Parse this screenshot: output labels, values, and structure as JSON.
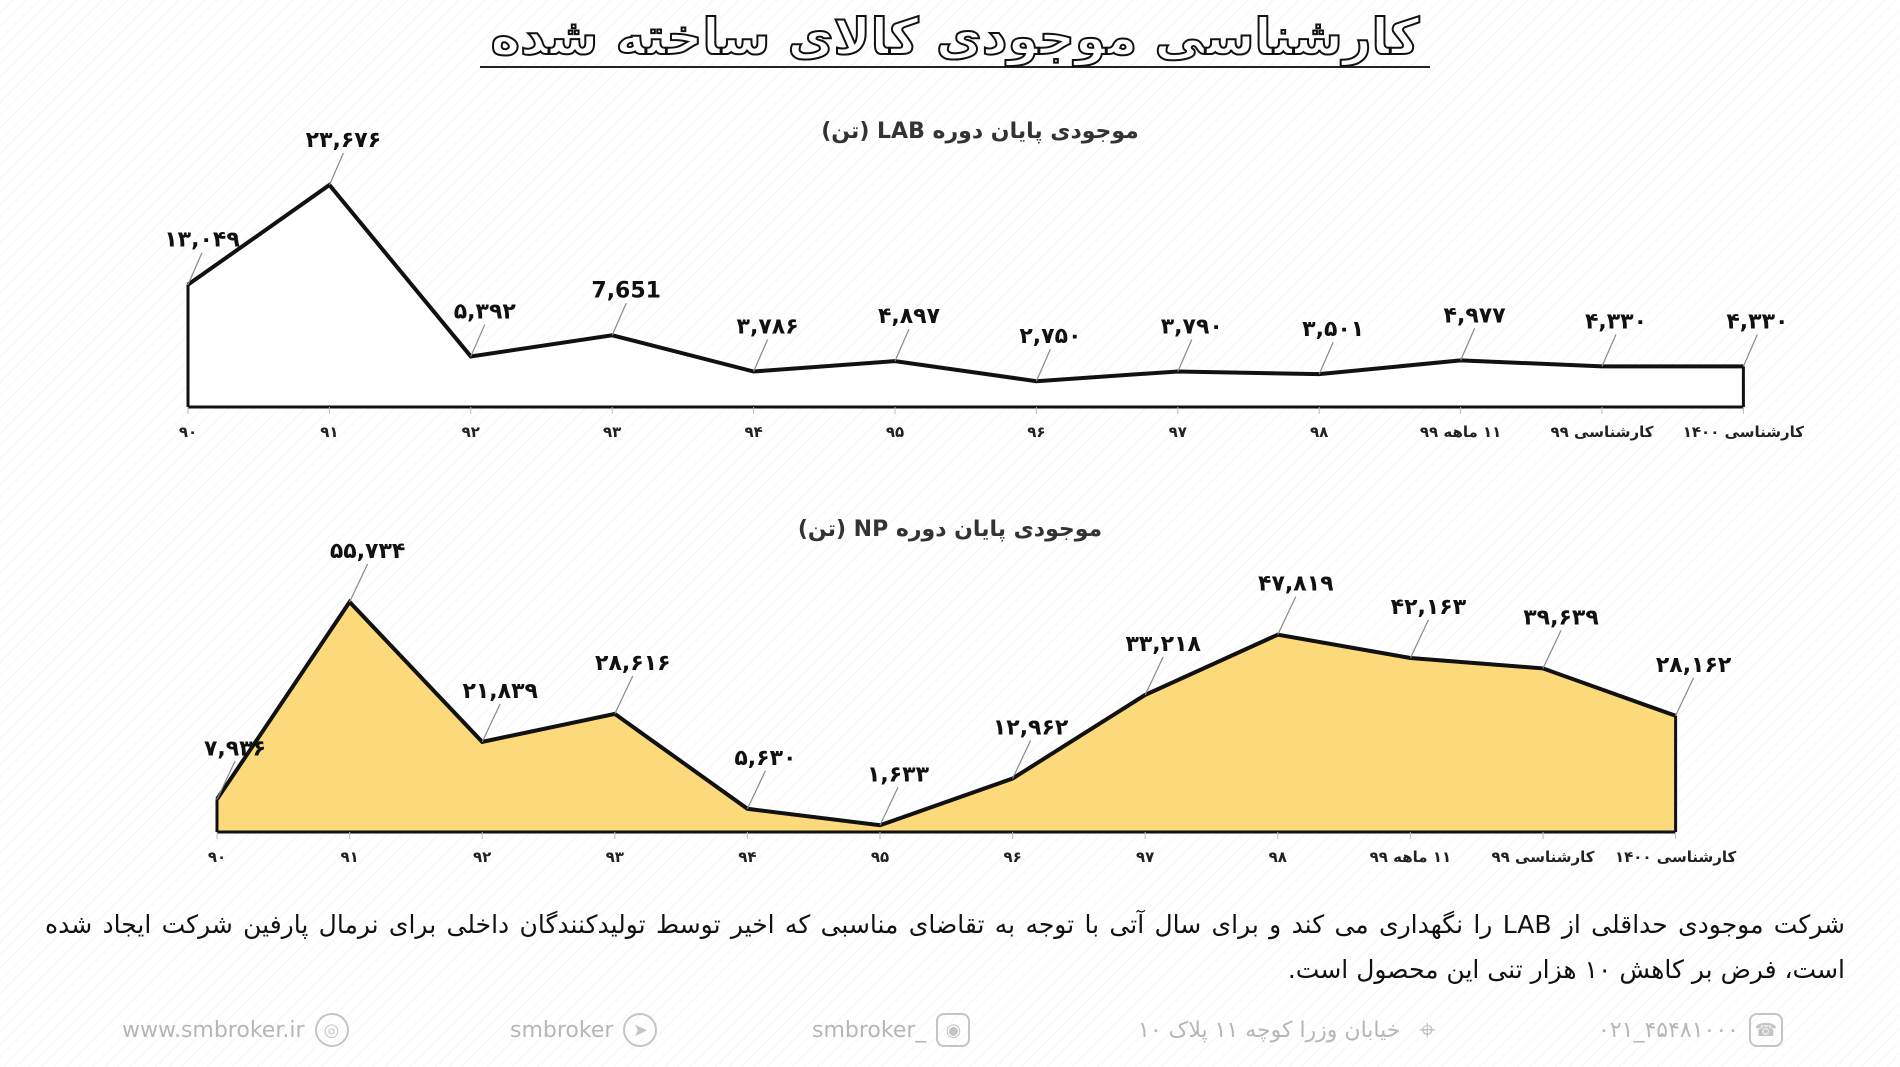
{
  "page": {
    "title": "کارشناسی موجودی کالای ساخته شده"
  },
  "chart_data": [
    {
      "type": "area",
      "title": "موجودی پایان دوره  LAB (تن)",
      "fill": "#ffffff",
      "stroke": "#111111",
      "categories": [
        "۹۰",
        "۹۱",
        "۹۲",
        "۹۳",
        "۹۴",
        "۹۵",
        "۹۶",
        "۹۷",
        "۹۸",
        "۱۱ ماهه ۹۹",
        "کارشناسی ۹۹",
        "کارشناسی ۱۴۰۰"
      ],
      "values": [
        13049,
        23676,
        5392,
        7651,
        3786,
        4897,
        2750,
        3790,
        3501,
        4977,
        4330,
        4330
      ],
      "value_labels": [
        "۱۳,۰۴۹",
        "۲۳,۶۷۶",
        "۵,۳۹۲",
        "7,651",
        "۳,۷۸۶",
        "۴,۸۹۷",
        "۲,۷۵۰",
        "۳,۷۹۰",
        "۳,۵۰۱",
        "۴,۹۷۷",
        "۴,۳۳۰",
        "۴,۳۳۰"
      ]
    },
    {
      "type": "area",
      "title": "موجودی پایان دوره  NP (تن)",
      "fill": "#FCD97A",
      "stroke": "#111111",
      "categories": [
        "۹۰",
        "۹۱",
        "۹۲",
        "۹۳",
        "۹۴",
        "۹۵",
        "۹۶",
        "۹۷",
        "۹۸",
        "۱۱ ماهه ۹۹",
        "کارشناسی ۹۹",
        "کارشناسی ۱۴۰۰"
      ],
      "values": [
        7936,
        55734,
        21839,
        28616,
        5630,
        1633,
        12962,
        33218,
        47819,
        42163,
        39639,
        28162
      ],
      "value_labels": [
        "۷,۹۳۶",
        "۵۵,۷۳۴",
        "۲۱,۸۳۹",
        "۲۸,۶۱۶",
        "۵,۶۳۰",
        "۱,۶۳۳",
        "۱۲,۹۶۲",
        "۳۳,۲۱۸",
        "۴۷,۸۱۹",
        "۴۲,۱۶۳",
        "۳۹,۶۳۹",
        "۲۸,۱۶۲"
      ]
    }
  ],
  "paragraph": "شرکت موجودی حداقلی از LAB را نگهداری می کند و برای سال آتی با توجه به تقاضای مناسبی که اخیر توسط تولیدکنندگان داخلی برای نرمال پارفین شرکت ایجاد شده است، فرض بر کاهش ۱۰ هزار تنی این محصول است.",
  "footer": {
    "website": "www.smbroker.ir",
    "telegram": "smbroker",
    "instagram": "smbroker_",
    "address": "خیابان وزرا کوچه ۱۱ پلاک ۱۰",
    "phone": "۰۲۱_۴۵۴۸۱۰۰۰",
    "icons": [
      "globe-icon",
      "telegram-icon",
      "instagram-icon",
      "location-pin-icon",
      "phone-icon"
    ]
  }
}
